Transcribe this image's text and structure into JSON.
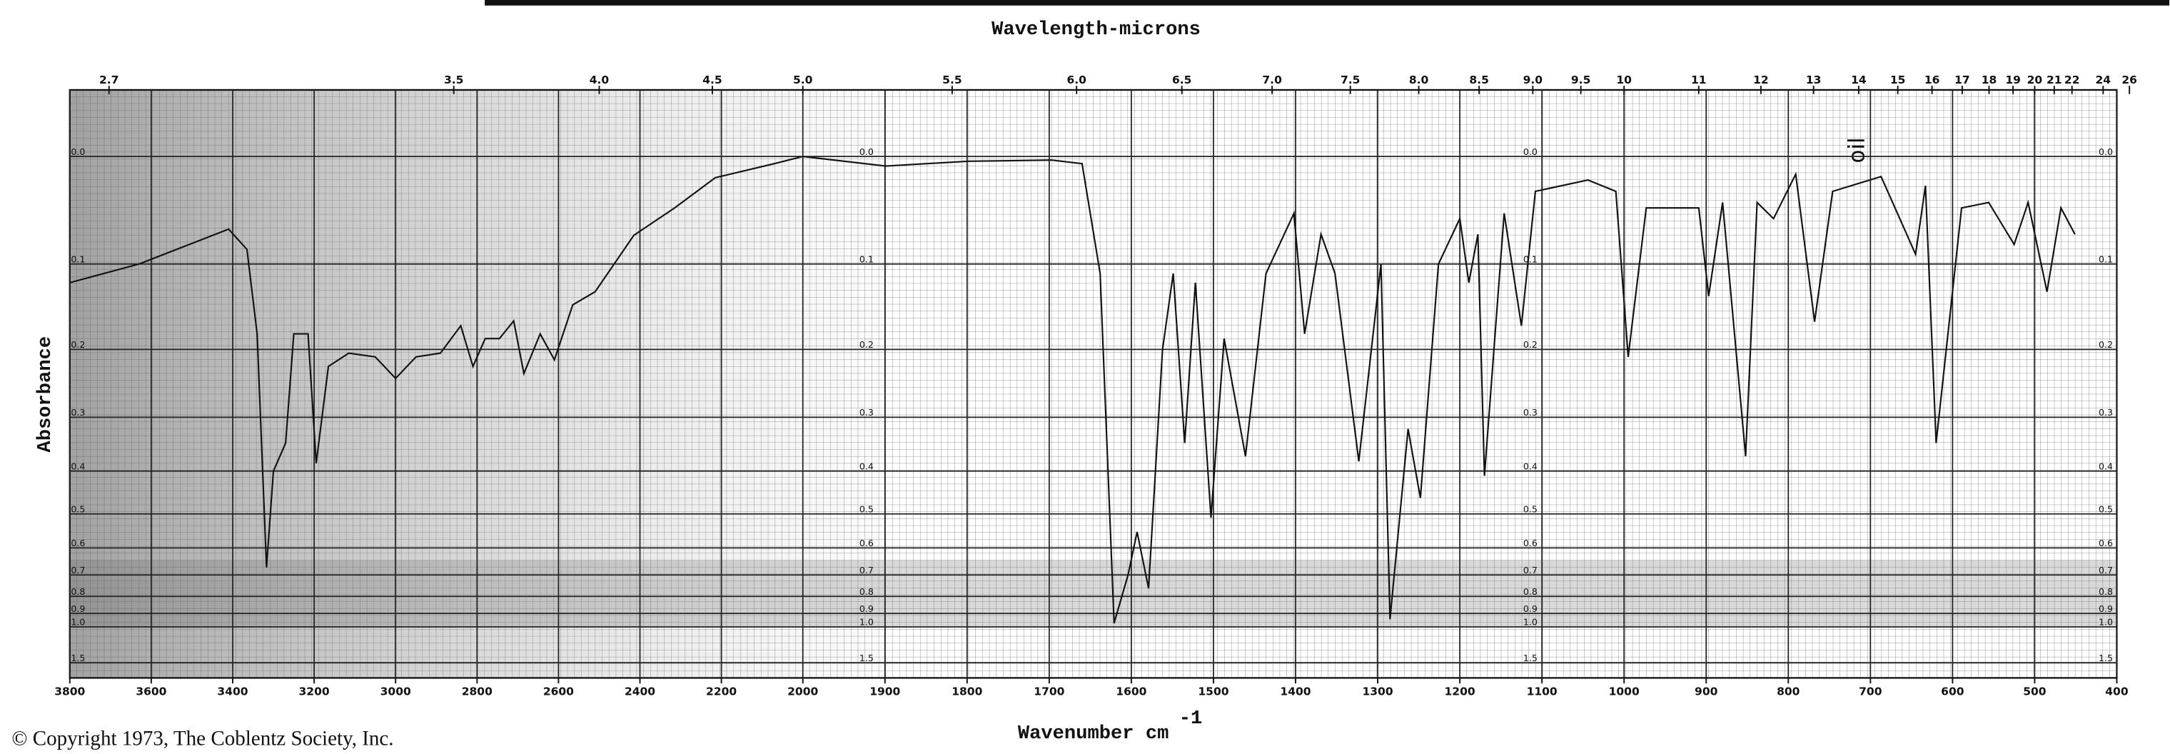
{
  "footer": "© Copyright 1973, The Coblentz Society, Inc.",
  "chart_data": [
    {
      "type": "line",
      "title": "Wavelength-microns",
      "y_label": "Absorbance",
      "y_scale": "transmittance",
      "ylim": [
        -0.05,
        1.5
      ],
      "yticks": [
        {
          "value": 0,
          "label": "0.0"
        },
        0.1,
        0.2,
        0.3,
        0.4,
        0.5,
        0.6,
        0.7,
        0.8,
        0.9,
        {
          "value": 1,
          "label": "1.0"
        },
        1.5
      ],
      "xlim": [
        3800,
        2000
      ],
      "xticks": [
        3800,
        3600,
        3400,
        3200,
        3000,
        2800,
        2600,
        2400,
        2200,
        2000
      ],
      "top_ticks": [
        2.7,
        3.5,
        {
          "value": 4,
          "label": "4.0"
        },
        4.5,
        {
          "value": 5,
          "label": "5.0"
        }
      ],
      "grid": true,
      "x": [
        3800,
        3630,
        3410,
        3365,
        3340,
        3317,
        3300,
        3270,
        3250,
        3215,
        3195,
        3165,
        3115,
        3050,
        3000,
        2950,
        2890,
        2840,
        2810,
        2780,
        2745,
        2710,
        2685,
        2645,
        2610,
        2565,
        2510,
        2415,
        2315,
        2215,
        2070,
        2000
      ],
      "series": [
        {
          "color": "#111111",
          "values": [
            0.12,
            0.1,
            0.065,
            0.085,
            0.18,
            0.67,
            0.4,
            0.345,
            0.18,
            0.18,
            0.384,
            0.223,
            0.205,
            0.21,
            0.24,
            0.21,
            0.205,
            0.17,
            0.223,
            0.186,
            0.186,
            0.164,
            0.233,
            0.18,
            0.214,
            0.145,
            0.13,
            0.071,
            0.045,
            0.018,
            0.006,
            0
          ]
        }
      ]
    },
    {
      "type": "line",
      "x_label": "Wavenumber cm",
      "x_label_sup": "-1",
      "annotation": "oil",
      "y_scale": "transmittance",
      "ylim": [
        -0.05,
        1.5
      ],
      "yticks": [
        {
          "value": 0,
          "label": "0.0"
        },
        0.1,
        0.2,
        0.3,
        0.4,
        0.5,
        0.6,
        0.7,
        0.8,
        0.9,
        {
          "value": 1,
          "label": "1.0"
        },
        1.5
      ],
      "xlim": [
        2000,
        400
      ],
      "xticks": [
        1900,
        1800,
        1700,
        1600,
        1500,
        1400,
        1300,
        1200,
        1100,
        1000,
        900,
        800,
        700,
        600,
        500,
        400
      ],
      "top_ticks": [
        5.5,
        {
          "value": 6,
          "label": "6.0"
        },
        6.5,
        {
          "value": 7,
          "label": "7.0"
        },
        7.5,
        {
          "value": 8,
          "label": "8.0"
        },
        8.5,
        {
          "value": 9,
          "label": "9.0"
        },
        9.5,
        10,
        11,
        12,
        13,
        14,
        15,
        16,
        17,
        18,
        19,
        20,
        21,
        22,
        24,
        26
      ],
      "grid": true,
      "x": [
        2000,
        1899,
        1798,
        1697,
        1660,
        1638,
        1621,
        1604,
        1593,
        1579,
        1562,
        1549,
        1535,
        1522,
        1503,
        1487,
        1461,
        1436,
        1402,
        1389,
        1369,
        1352,
        1323,
        1296,
        1285,
        1263,
        1248,
        1226,
        1200,
        1189,
        1178,
        1170,
        1146,
        1125,
        1108,
        1044,
        1010,
        995,
        973,
        939,
        909,
        897,
        880,
        852,
        838,
        818,
        791,
        768,
        746,
        687,
        645,
        633,
        620,
        589,
        556,
        525,
        508,
        485,
        468,
        451
      ],
      "series": [
        {
          "color": "#111111",
          "values": [
            0,
            0.008,
            0.004,
            0.003,
            0.006,
            0.11,
            0.97,
            0.7,
            0.55,
            0.76,
            0.2,
            0.11,
            0.345,
            0.12,
            0.51,
            0.186,
            0.37,
            0.11,
            0.05,
            0.18,
            0.07,
            0.11,
            0.38,
            0.1,
            0.94,
            0.32,
            0.46,
            0.1,
            0.055,
            0.12,
            0.07,
            0.41,
            0.05,
            0.17,
            0.03,
            0.02,
            0.03,
            0.21,
            0.045,
            0.045,
            0.045,
            0.135,
            0.04,
            0.37,
            0.04,
            0.055,
            0.015,
            0.165,
            0.03,
            0.017,
            0.09,
            0.025,
            0.345,
            0.045,
            0.04,
            0.08,
            0.04,
            0.13,
            0.045,
            0.07
          ]
        }
      ]
    }
  ]
}
